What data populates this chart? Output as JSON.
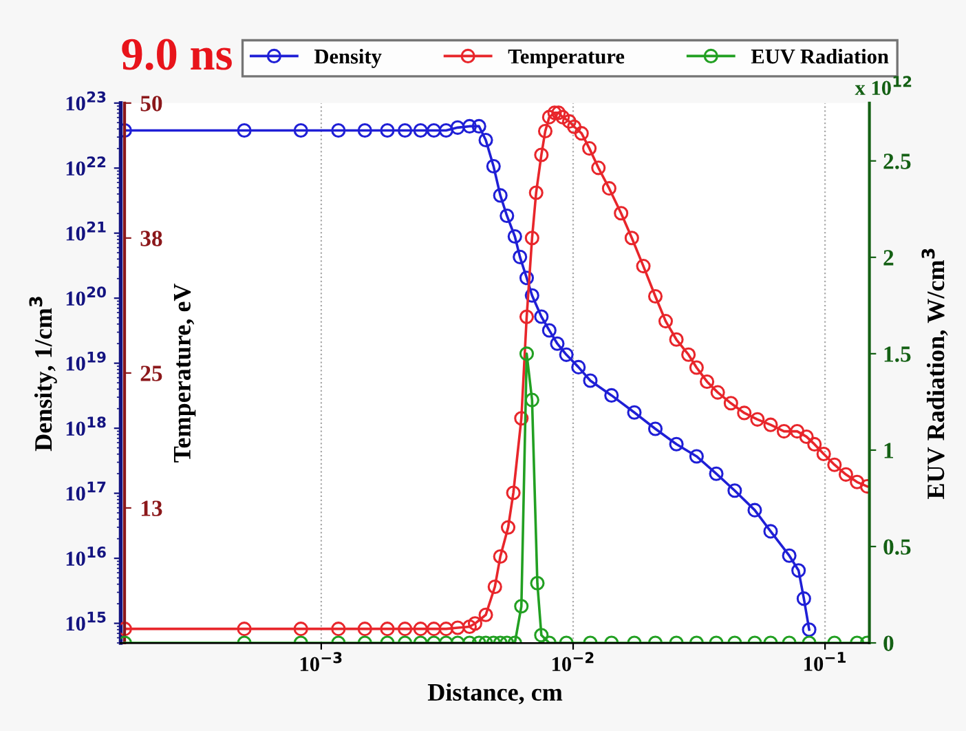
{
  "chart_data": {
    "type": "line",
    "title": "9.0 ns",
    "xlabel": "Distance, cm",
    "ylabel": "Density, 1/cm$^{3}$",
    "y2label": "Temperature, eV",
    "y3label": "EUV Radiation, W/cm$^{3}$",
    "annotations": [
      "x 10$^{12}$"
    ],
    "log": "xy",
    "grid": "x",
    "legend": "top",
    "marker": "circle",
    "line_style": "solid",
    "xlim": [
      0.00016,
      0.15
    ],
    "xticks": [
      {
        "value": 0.001,
        "label": "10$^{−3}$"
      },
      {
        "value": 0.01,
        "label": "10$^{−2}$"
      },
      {
        "value": 0.1,
        "label": "10$^{−1}$"
      }
    ],
    "ylim": [
      500000000000000.0,
      1e+23
    ],
    "yticks": [
      {
        "value": 1000000000000000.0,
        "label": "10$^{15}$"
      },
      {
        "value": 1e+16,
        "label": "10$^{16}$"
      },
      {
        "value": 1e+17,
        "label": "10$^{17}$"
      },
      {
        "value": 1e+18,
        "label": "10$^{18}$"
      },
      {
        "value": 1e+19,
        "label": "10$^{19}$"
      },
      {
        "value": 1e+20,
        "label": "10$^{20}$"
      },
      {
        "value": 1e+21,
        "label": "10$^{21}$"
      },
      {
        "value": 1e+22,
        "label": "10$^{22}$"
      },
      {
        "value": 1e+23,
        "label": "10$^{23}$"
      }
    ],
    "y2lim": [
      0,
      50
    ],
    "y2ticks": [
      {
        "value": 12.5,
        "label": "13"
      },
      25,
      {
        "value": 37.5,
        "label": "38"
      },
      50
    ],
    "y3lim": [
      0,
      2.8
    ],
    "y3ticks": [
      0,
      0.5,
      1,
      1.5,
      2,
      2.5
    ],
    "series": [
      {
        "name": "Density",
        "color": "#1f1fd6",
        "axis": "y",
        "x": [
          0.000166,
          0.000495,
          0.00083,
          0.00117,
          0.00149,
          0.00183,
          0.00215,
          0.00248,
          0.0028,
          0.00313,
          0.00348,
          0.00388,
          0.00423,
          0.0045,
          0.00483,
          0.00514,
          0.00546,
          0.00587,
          0.00615,
          0.00654,
          0.00687,
          0.00748,
          0.00804,
          0.00865,
          0.0094,
          0.0105,
          0.0117,
          0.0142,
          0.0175,
          0.0212,
          0.0257,
          0.0309,
          0.037,
          0.0438,
          0.0526,
          0.0608,
          0.0721,
          0.0785,
          0.0824,
          0.0865
        ],
        "values": [
          3.8e+22,
          3.8e+22,
          3.8e+22,
          3.8e+22,
          3.8e+22,
          3.8e+22,
          3.8e+22,
          3.8e+22,
          3.8e+22,
          3.8e+22,
          4.2e+22,
          4.4e+22,
          4.4e+22,
          2.7e+22,
          1.07e+22,
          3.8e+21,
          1.85e+21,
          8.9e+20,
          4.3e+20,
          2.05e+20,
          1.1e+20,
          5.2e+19,
          3.2e+19,
          2e+19,
          1.35e+19,
          8.7e+18,
          5.4e+18,
          3.2e+18,
          1.75e+18,
          9.8e+17,
          5.7e+17,
          3.7e+17,
          2e+17,
          1.1e+17,
          5.5e+16,
          2.6e+16,
          1.1e+16,
          6500000000000000.0,
          2400000000000000.0,
          800000000000000.0
        ]
      },
      {
        "name": "Temperature",
        "color": "#e8262b",
        "axis": "y2",
        "x": [
          0.000166,
          0.000495,
          0.00083,
          0.00117,
          0.00149,
          0.00183,
          0.00215,
          0.00248,
          0.0028,
          0.00313,
          0.00348,
          0.00388,
          0.00408,
          0.0045,
          0.00489,
          0.00514,
          0.00552,
          0.00579,
          0.00623,
          0.00654,
          0.00687,
          0.00713,
          0.00748,
          0.00775,
          0.00804,
          0.00844,
          0.00875,
          0.00908,
          0.00965,
          0.0101,
          0.0108,
          0.0116,
          0.0126,
          0.0139,
          0.0155,
          0.0171,
          0.019,
          0.0212,
          0.0233,
          0.0257,
          0.0287,
          0.0309,
          0.034,
          0.0375,
          0.0423,
          0.0478,
          0.0539,
          0.0608,
          0.0687,
          0.0775,
          0.0844,
          0.0908,
          0.0988,
          0.109,
          0.121,
          0.134,
          0.147
        ],
        "values": [
          1.3,
          1.3,
          1.3,
          1.3,
          1.3,
          1.3,
          1.3,
          1.3,
          1.3,
          1.3,
          1.4,
          1.5,
          1.8,
          2.6,
          5.2,
          8.0,
          10.7,
          13.9,
          20.8,
          30.2,
          37.5,
          41.7,
          45.2,
          47.4,
          48.7,
          49.1,
          49.1,
          48.7,
          48.3,
          47.8,
          47.2,
          45.8,
          44.0,
          42.1,
          39.8,
          37.5,
          34.9,
          32.1,
          29.8,
          28.1,
          26.7,
          25.5,
          24.2,
          23.2,
          22.2,
          21.3,
          20.7,
          20.2,
          19.6,
          19.6,
          19.1,
          18.4,
          17.5,
          16.5,
          15.6,
          14.9,
          14.5
        ]
      },
      {
        "name": "EUV Radiation",
        "color": "#22a022",
        "axis": "y3",
        "x": [
          0.000166,
          0.000495,
          0.00083,
          0.00117,
          0.00149,
          0.00183,
          0.00215,
          0.00248,
          0.0028,
          0.00313,
          0.00348,
          0.00388,
          0.00423,
          0.0045,
          0.00483,
          0.00514,
          0.00546,
          0.00587,
          0.00623,
          0.00654,
          0.00687,
          0.00721,
          0.00748,
          0.00804,
          0.0094,
          0.0117,
          0.0142,
          0.0175,
          0.0212,
          0.0257,
          0.0309,
          0.037,
          0.0438,
          0.0526,
          0.0608,
          0.0721,
          0.0865,
          0.109,
          0.134,
          0.147
        ],
        "values": [
          0,
          0,
          0,
          0,
          0,
          0,
          0,
          0,
          0,
          0,
          0,
          0,
          0,
          0,
          0,
          0,
          0,
          0,
          0.19,
          1.5,
          1.26,
          0.31,
          0.04,
          0,
          0,
          0,
          0,
          0,
          0,
          0,
          0,
          0,
          0,
          0,
          0,
          0,
          0,
          0,
          0,
          0
        ]
      }
    ]
  }
}
